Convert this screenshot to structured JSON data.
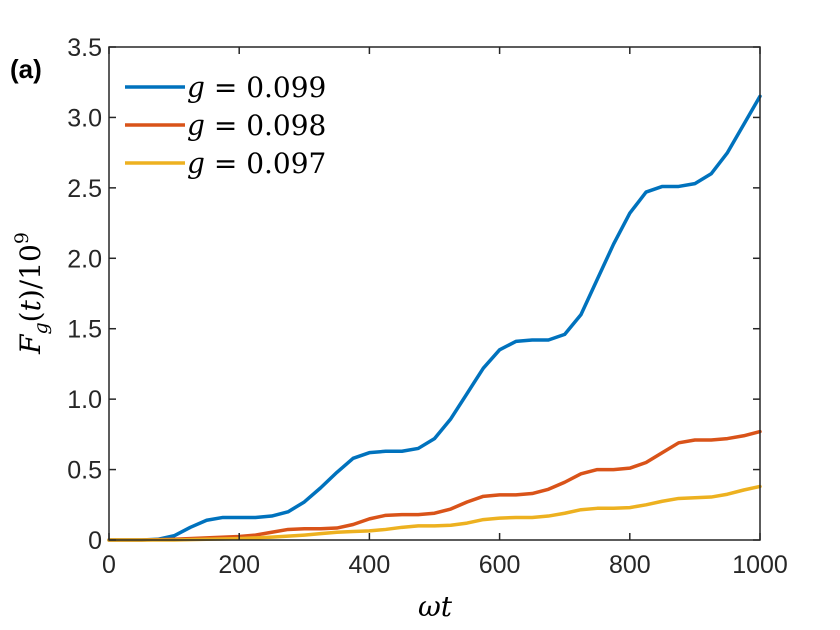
{
  "panel_label": "(a)",
  "chart_data": {
    "type": "line",
    "xlabel_text": "ωt",
    "ylabel_text": "F_g(t)/10^9",
    "xlim": [
      0,
      1000
    ],
    "ylim": [
      0,
      3.5
    ],
    "xticks": [
      0,
      200,
      400,
      600,
      800,
      1000
    ],
    "xtick_labels": [
      "0",
      "200",
      "400",
      "600",
      "800",
      "1000"
    ],
    "yticks": [
      0,
      0.5,
      1.0,
      1.5,
      2.0,
      2.5,
      3.0,
      3.5
    ],
    "ytick_labels": [
      "0",
      "0.5",
      "1.0",
      "1.5",
      "2.0",
      "2.5",
      "3.0",
      "3.5"
    ],
    "grid": false,
    "legend_position": "top-left",
    "series": [
      {
        "name": "g = 0.099",
        "legend_var": "g",
        "legend_value": "0.099",
        "color": "#0072BD",
        "x": [
          0,
          25,
          50,
          75,
          100,
          125,
          150,
          175,
          200,
          225,
          250,
          275,
          300,
          325,
          350,
          375,
          400,
          425,
          450,
          475,
          500,
          525,
          550,
          575,
          600,
          625,
          650,
          675,
          700,
          725,
          750,
          775,
          800,
          825,
          850,
          875,
          900,
          925,
          950,
          975,
          1000
        ],
        "y": [
          0,
          0,
          0,
          0.005,
          0.03,
          0.09,
          0.14,
          0.16,
          0.16,
          0.16,
          0.17,
          0.2,
          0.27,
          0.37,
          0.48,
          0.58,
          0.62,
          0.63,
          0.63,
          0.65,
          0.72,
          0.86,
          1.04,
          1.22,
          1.35,
          1.41,
          1.42,
          1.42,
          1.46,
          1.6,
          1.85,
          2.1,
          2.32,
          2.47,
          2.51,
          2.51,
          2.53,
          2.6,
          2.75,
          2.95,
          3.15
        ]
      },
      {
        "name": "g = 0.098",
        "legend_var": "g",
        "legend_value": "0.098",
        "color": "#D95319",
        "x": [
          0,
          50,
          100,
          150,
          200,
          225,
          250,
          275,
          300,
          325,
          350,
          375,
          400,
          425,
          450,
          475,
          500,
          525,
          550,
          575,
          600,
          625,
          650,
          675,
          700,
          725,
          750,
          775,
          800,
          825,
          850,
          875,
          900,
          925,
          950,
          975,
          1000
        ],
        "y": [
          0,
          0,
          0.005,
          0.015,
          0.025,
          0.035,
          0.055,
          0.075,
          0.08,
          0.08,
          0.085,
          0.11,
          0.15,
          0.175,
          0.18,
          0.18,
          0.19,
          0.22,
          0.27,
          0.31,
          0.32,
          0.32,
          0.33,
          0.36,
          0.41,
          0.47,
          0.5,
          0.5,
          0.51,
          0.55,
          0.62,
          0.69,
          0.71,
          0.71,
          0.72,
          0.74,
          0.77
        ]
      },
      {
        "name": "g = 0.097",
        "legend_var": "g",
        "legend_value": "0.097",
        "color": "#EDB120",
        "x": [
          0,
          50,
          100,
          150,
          200,
          250,
          300,
          325,
          350,
          375,
          400,
          425,
          450,
          475,
          500,
          525,
          550,
          575,
          600,
          625,
          650,
          675,
          700,
          725,
          750,
          775,
          800,
          825,
          850,
          875,
          900,
          925,
          950,
          975,
          1000
        ],
        "y": [
          0,
          0,
          0,
          0.005,
          0.01,
          0.02,
          0.035,
          0.045,
          0.055,
          0.06,
          0.065,
          0.075,
          0.09,
          0.1,
          0.1,
          0.105,
          0.12,
          0.145,
          0.155,
          0.16,
          0.16,
          0.17,
          0.19,
          0.215,
          0.225,
          0.225,
          0.23,
          0.25,
          0.275,
          0.295,
          0.3,
          0.305,
          0.325,
          0.355,
          0.38
        ]
      }
    ]
  }
}
